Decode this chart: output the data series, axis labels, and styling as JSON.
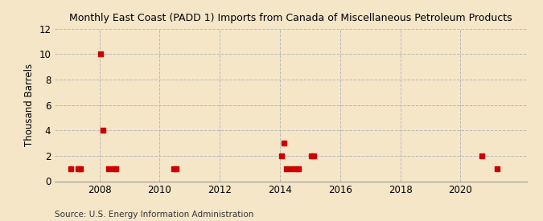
{
  "title": "Monthly East Coast (PADD 1) Imports from Canada of Miscellaneous Petroleum Products",
  "ylabel": "Thousand Barrels",
  "source": "Source: U.S. Energy Information Administration",
  "background_color": "#f5e6c8",
  "plot_bg_color": "#f5e6c8",
  "marker_color": "#cc0000",
  "grid_color": "#bbbbbb",
  "ylim": [
    0,
    12
  ],
  "yticks": [
    0,
    2,
    4,
    6,
    8,
    10,
    12
  ],
  "data_points": [
    {
      "year": 2007,
      "month": 1,
      "value": 1
    },
    {
      "year": 2007,
      "month": 4,
      "value": 1
    },
    {
      "year": 2007,
      "month": 5,
      "value": 1
    },
    {
      "year": 2008,
      "month": 1,
      "value": 10
    },
    {
      "year": 2008,
      "month": 2,
      "value": 4
    },
    {
      "year": 2008,
      "month": 4,
      "value": 1
    },
    {
      "year": 2008,
      "month": 6,
      "value": 1
    },
    {
      "year": 2008,
      "month": 7,
      "value": 1
    },
    {
      "year": 2010,
      "month": 6,
      "value": 1
    },
    {
      "year": 2010,
      "month": 7,
      "value": 1
    },
    {
      "year": 2014,
      "month": 1,
      "value": 2
    },
    {
      "year": 2014,
      "month": 2,
      "value": 3
    },
    {
      "year": 2014,
      "month": 3,
      "value": 1
    },
    {
      "year": 2014,
      "month": 5,
      "value": 1
    },
    {
      "year": 2014,
      "month": 7,
      "value": 1
    },
    {
      "year": 2014,
      "month": 8,
      "value": 1
    },
    {
      "year": 2015,
      "month": 1,
      "value": 2
    },
    {
      "year": 2015,
      "month": 2,
      "value": 2
    },
    {
      "year": 2020,
      "month": 9,
      "value": 2
    },
    {
      "year": 2021,
      "month": 3,
      "value": 1
    }
  ],
  "xlim_start": 2006.5,
  "xlim_end": 2022.2,
  "xticks": [
    2008,
    2010,
    2012,
    2014,
    2016,
    2018,
    2020
  ]
}
